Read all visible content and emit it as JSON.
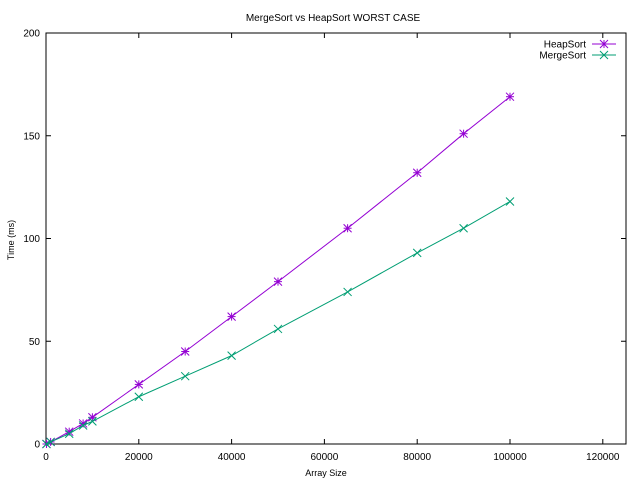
{
  "chart_data": {
    "type": "line",
    "title": "MergeSort vs HeapSort WORST CASE",
    "xlabel": "Array Size",
    "ylabel": "Time (ms)",
    "xlim": [
      0,
      125000
    ],
    "ylim": [
      0,
      200
    ],
    "xticks": [
      0,
      20000,
      40000,
      60000,
      80000,
      100000,
      120000
    ],
    "yticks": [
      0,
      50,
      100,
      150,
      200
    ],
    "grid": false,
    "legend_position": "top-right",
    "series": [
      {
        "name": "HeapSort",
        "color": "#9400d3",
        "marker": "asterisk",
        "x": [
          100,
          1000,
          5000,
          8000,
          10000,
          20000,
          30000,
          40000,
          50000,
          65000,
          80000,
          90000,
          100000
        ],
        "y": [
          0,
          1,
          6,
          10,
          13,
          29,
          45,
          62,
          79,
          105,
          132,
          151,
          169
        ]
      },
      {
        "name": "MergeSort",
        "color": "#009e73",
        "marker": "x",
        "x": [
          100,
          1000,
          5000,
          8000,
          10000,
          20000,
          30000,
          40000,
          50000,
          65000,
          80000,
          90000,
          100000
        ],
        "y": [
          0,
          1,
          5,
          9,
          11,
          23,
          33,
          43,
          56,
          74,
          93,
          105,
          118
        ]
      }
    ]
  }
}
